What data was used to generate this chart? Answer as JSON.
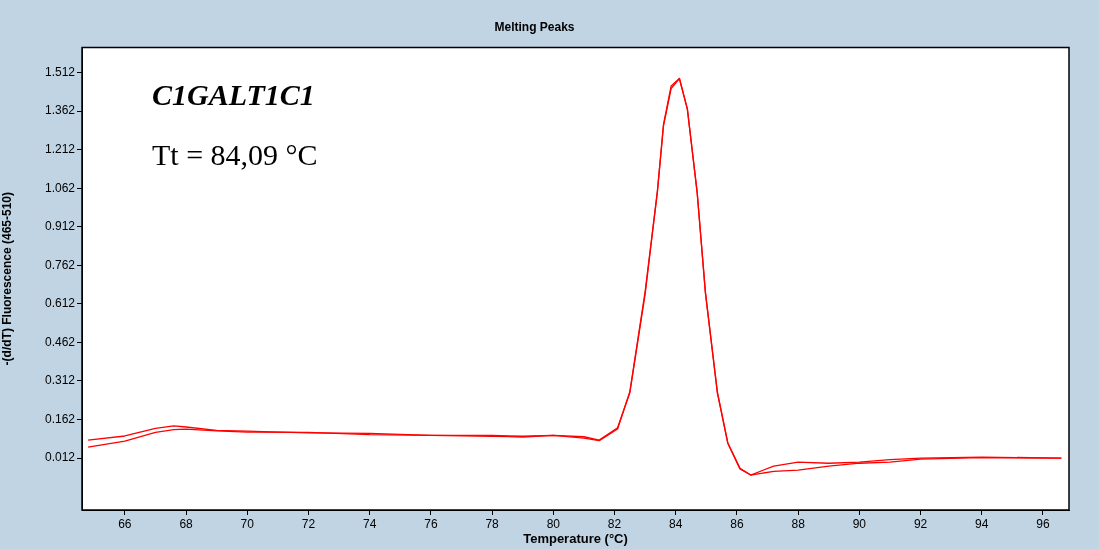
{
  "chart_data": {
    "type": "line",
    "title": "Melting Peaks",
    "xlabel": "Temperature (°C)",
    "ylabel": "-(d/dT) Fluorescence (465-510)",
    "annotations": [
      "C1GALT1C1",
      "Tt = 84,09 °C"
    ],
    "xlim": [
      64.6,
      96.85
    ],
    "ylim": [
      -0.19,
      1.61
    ],
    "xticks": [
      66,
      68,
      70,
      72,
      74,
      76,
      78,
      80,
      82,
      84,
      86,
      88,
      90,
      92,
      94,
      96
    ],
    "yticks": [
      0.012,
      0.162,
      0.312,
      0.462,
      0.612,
      0.762,
      0.912,
      1.062,
      1.212,
      1.362,
      1.512
    ],
    "grid": false,
    "legend": false,
    "marker": "none",
    "line_style": "solid",
    "series": [
      {
        "color": "#ff0000",
        "x": [
          64.8,
          66,
          67,
          67.6,
          68,
          69,
          70,
          72,
          74,
          76,
          78,
          79,
          80,
          81,
          81.5,
          82.1,
          82.5,
          83,
          83.4,
          83.6,
          83.85,
          84.12,
          84.38,
          84.7,
          84.97,
          85.36,
          85.7,
          86.1,
          86.45,
          87.2,
          88,
          89,
          90,
          91,
          92,
          94,
          96.6
        ],
        "values": [
          0.082,
          0.098,
          0.128,
          0.137,
          0.133,
          0.12,
          0.117,
          0.11,
          0.108,
          0.1,
          0.1,
          0.097,
          0.1,
          0.095,
          0.082,
          0.13,
          0.266,
          0.65,
          1.047,
          1.305,
          1.45,
          1.489,
          1.371,
          1.047,
          0.657,
          0.266,
          0.07,
          -0.03,
          -0.054,
          -0.019,
          -0.004,
          -0.008,
          -0.004,
          0.006,
          0.012,
          0.016,
          0.012
        ]
      },
      {
        "color": "#ff0000",
        "x": [
          64.8,
          66,
          67,
          67.6,
          68,
          69,
          70,
          72,
          74,
          76,
          78,
          79,
          80,
          81,
          81.5,
          82.1,
          82.5,
          83,
          83.4,
          83.6,
          83.85,
          84.12,
          84.38,
          84.7,
          84.97,
          85.36,
          85.7,
          86.1,
          86.45,
          87.2,
          88,
          89,
          90,
          91,
          92,
          94,
          96.6
        ],
        "values": [
          0.055,
          0.078,
          0.112,
          0.123,
          0.125,
          0.118,
          0.113,
          0.112,
          0.103,
          0.1,
          0.097,
          0.094,
          0.1,
          0.09,
          0.08,
          0.125,
          0.27,
          0.66,
          1.05,
          1.31,
          1.46,
          1.489,
          1.37,
          1.045,
          0.655,
          0.27,
          0.072,
          -0.028,
          -0.054,
          -0.04,
          -0.035,
          -0.019,
          -0.008,
          -0.004,
          0.008,
          0.014,
          0.012
        ]
      }
    ]
  }
}
